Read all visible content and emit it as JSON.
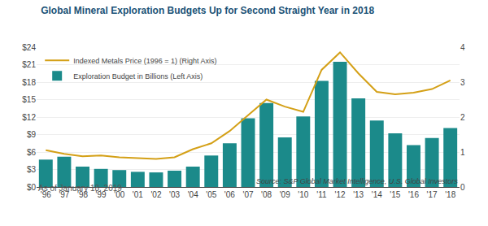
{
  "chart_data": {
    "type": "bar",
    "title": "Global Mineral Exploration Budgets Up for Second Straight Year in 2018",
    "subtitle": "As of January 18, 2019",
    "source": "Source: S&P Global Market Intelligence, U.S. Global Investors",
    "categories": [
      "'96",
      "'97",
      "'98",
      "'99",
      "'00",
      "'01",
      "'02",
      "'03",
      "'04",
      "'05",
      "'06",
      "'07",
      "'08",
      "'09",
      "'10",
      "'11",
      "'12",
      "'13",
      "'14",
      "'15",
      "'16",
      "'17",
      "'18"
    ],
    "series": [
      {
        "name": "Exploration Budget in Billions (Left Axis)",
        "type": "bar",
        "color": "#1B8A8A",
        "values": [
          4.7,
          5.2,
          3.5,
          3.1,
          2.9,
          2.6,
          2.5,
          2.8,
          3.5,
          5.4,
          7.5,
          11.8,
          14.4,
          8.5,
          12.1,
          18.2,
          21.5,
          15.2,
          11.4,
          9.2,
          7.2,
          8.4,
          10.1
        ]
      },
      {
        "name": "Indexed Metals Price (1996 = 1) (Right Axis)",
        "type": "line",
        "axis": "y2",
        "color": "#D4A017",
        "values": [
          1.05,
          0.95,
          0.88,
          0.9,
          0.85,
          0.82,
          0.8,
          0.85,
          1.08,
          1.25,
          1.6,
          2.05,
          2.5,
          2.3,
          2.15,
          3.35,
          3.85,
          3.25,
          2.72,
          2.65,
          2.7,
          2.8,
          3.05
        ]
      }
    ],
    "ylim": [
      0,
      24
    ],
    "yticks": [
      {
        "value": 0,
        "label": "$0"
      },
      {
        "value": 3,
        "label": "$3"
      },
      {
        "value": 6,
        "label": "$6"
      },
      {
        "value": 9,
        "label": "$9"
      },
      {
        "value": 12,
        "label": "$12"
      },
      {
        "value": 15,
        "label": "$15"
      },
      {
        "value": 18,
        "label": "$18"
      },
      {
        "value": 21,
        "label": "$21"
      },
      {
        "value": 24,
        "label": "$24"
      }
    ],
    "y2lim": [
      0,
      4
    ],
    "y2ticks": [
      0,
      1,
      2,
      3,
      4
    ],
    "grid": true,
    "legend": "upper left"
  }
}
